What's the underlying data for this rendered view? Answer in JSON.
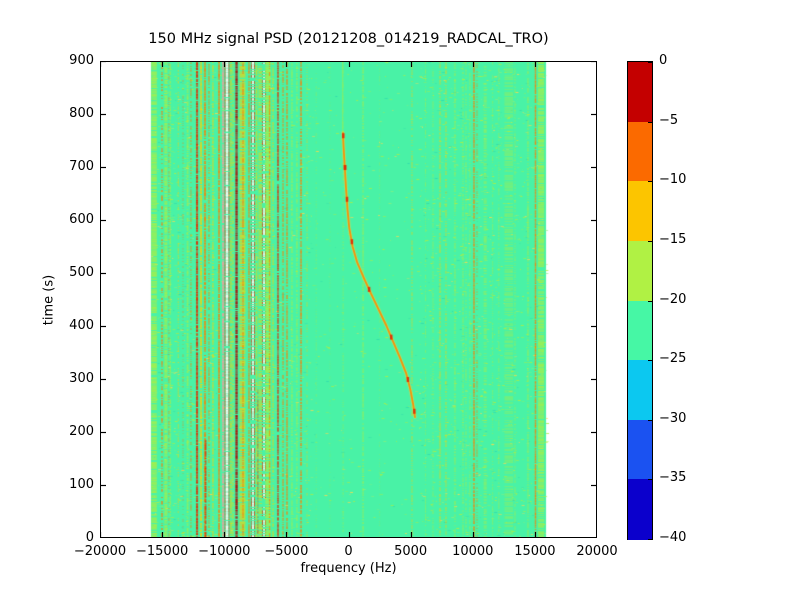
{
  "chart_data": {
    "type": "heatmap",
    "title": "150 MHz signal PSD (20121208_014219_RADCAL_TRO)",
    "xlabel": "frequency (Hz)",
    "ylabel": "time (s)",
    "xlim": [
      -20000,
      20000
    ],
    "ylim": [
      0,
      900
    ],
    "grid": false,
    "x_ticks": [
      -20000,
      -15000,
      -10000,
      -5000,
      0,
      5000,
      10000,
      15000,
      20000
    ],
    "x_tick_labels": [
      "−20000",
      "−15000",
      "−10000",
      "−5000",
      "0",
      "5000",
      "10000",
      "15000",
      "20000"
    ],
    "y_ticks": [
      0,
      100,
      200,
      300,
      400,
      500,
      600,
      700,
      800,
      900
    ],
    "y_tick_labels": [
      "0",
      "100",
      "200",
      "300",
      "400",
      "500",
      "600",
      "700",
      "800",
      "900"
    ],
    "colorbar": {
      "position": "right",
      "tick_values": [
        0,
        -5,
        -10,
        -15,
        -20,
        -25,
        -30,
        -35,
        -40
      ],
      "tick_labels": [
        "0",
        "−5",
        "−10",
        "−15",
        "−20",
        "−25",
        "−30",
        "−35",
        "−40"
      ],
      "segments_top_to_bottom": [
        "#c40000",
        "#fb6a00",
        "#fcc500",
        "#b0f144",
        "#46f7a5",
        "#0cc8f0",
        "#1b52f1",
        "#0b00cc"
      ]
    },
    "data_extent_hz": [
      -15900,
      15900
    ],
    "background_level_color": "#49f2a6",
    "palette": {
      "R": "#e22800",
      "DR": "#b20000",
      "O": "#ff7d00",
      "Y": "#ffd000",
      "G": "#b2ee3e",
      "LG": "#8bf07c",
      "P": "#f29e9e",
      "W": "#ffffff",
      "T": "#2fd9b0",
      "YD": "#ffd84d"
    },
    "noise_zones": [
      {
        "f0": -15900,
        "f1": -10700,
        "density": 0.75
      },
      {
        "f0": -10700,
        "f1": -3000,
        "density": 0.4
      },
      {
        "f0": -3000,
        "f1": 5600,
        "density": 0.16
      },
      {
        "f0": 5600,
        "f1": 15900,
        "density": 0.55
      }
    ],
    "stripes": [
      [
        -15650,
        450,
        "G",
        0.8,
        0.12
      ],
      [
        -15010,
        140,
        "O",
        0.8,
        0.5
      ],
      [
        -14700,
        250,
        "G",
        0.75,
        0.15
      ],
      [
        -14450,
        110,
        "O",
        0.55,
        0.55
      ],
      [
        -14350,
        120,
        "G",
        0.7,
        0.3
      ],
      [
        -13700,
        100,
        "Y",
        0.55,
        0.5
      ],
      [
        -13320,
        90,
        "O",
        0.5,
        0.6
      ],
      [
        -12950,
        150,
        "G",
        0.7,
        0.3
      ],
      [
        -12680,
        100,
        "O",
        0.7,
        0.45
      ],
      [
        -12190,
        170,
        "R",
        0.95,
        0.05
      ],
      [
        -11870,
        160,
        "Y",
        0.85,
        0.1
      ],
      [
        -11550,
        170,
        "O",
        0.88,
        0.12
      ],
      [
        -11500,
        140,
        "R",
        0.9,
        0.15,
        0,
        185
      ],
      [
        -11230,
        120,
        "O",
        0.7,
        0.35
      ],
      [
        -10910,
        110,
        "Y",
        0.8,
        0.2
      ],
      [
        -10420,
        140,
        "O",
        0.92,
        0.06
      ],
      [
        -10100,
        160,
        "P",
        0.9,
        0.08
      ],
      [
        -9780,
        230,
        "W",
        0.95,
        0.05,
        0,
        900,
        1
      ],
      [
        -9460,
        110,
        "Y",
        0.8,
        0.2
      ],
      [
        -9300,
        100,
        "Y",
        0.7,
        0.3
      ],
      [
        -9010,
        190,
        "DR",
        0.96,
        0.03
      ],
      [
        -8530,
        470,
        "Y",
        0.7,
        0.15
      ],
      [
        -8490,
        110,
        "O",
        0.85,
        0.2
      ],
      [
        -8010,
        120,
        "O",
        0.85,
        0.15
      ],
      [
        -7690,
        170,
        "W",
        0.9,
        0.35,
        0,
        900,
        1
      ],
      [
        -7400,
        120,
        "Y",
        0.75,
        0.25
      ],
      [
        -7290,
        90,
        "R",
        0.85,
        0.3,
        0,
        280
      ],
      [
        -7100,
        300,
        "Y",
        0.55,
        0.3
      ],
      [
        -6800,
        160,
        "W",
        0.85,
        0.45,
        0,
        900,
        1
      ],
      [
        -6480,
        420,
        "G",
        0.85,
        0.1
      ],
      [
        -6350,
        110,
        "O",
        0.8,
        0.3
      ],
      [
        -6075,
        110,
        "Y",
        0.75,
        0.3
      ],
      [
        -5675,
        130,
        "R",
        0.9,
        0.1
      ],
      [
        -5270,
        110,
        "O",
        0.8,
        0.3
      ],
      [
        -4950,
        120,
        "O",
        0.85,
        0.2
      ],
      [
        -4550,
        100,
        "G",
        0.8,
        0.25
      ],
      [
        -4150,
        100,
        "G",
        0.75,
        0.3
      ],
      [
        -3820,
        140,
        "O",
        0.85,
        0.25
      ],
      [
        -3340,
        90,
        "Y",
        0.5,
        0.5
      ],
      [
        -2600,
        80,
        "G",
        0.4,
        0.6
      ],
      [
        -1500,
        70,
        "G",
        0.3,
        0.7
      ],
      [
        -440,
        70,
        "G",
        0.55,
        0.4
      ],
      [
        1170,
        90,
        "G",
        0.8,
        0.25
      ],
      [
        2500,
        70,
        "G",
        0.35,
        0.65
      ],
      [
        5110,
        90,
        "Y",
        0.6,
        0.4
      ],
      [
        6200,
        90,
        "G",
        0.5,
        0.5
      ],
      [
        6800,
        90,
        "G",
        0.55,
        0.45
      ],
      [
        7365,
        100,
        "Y",
        0.7,
        0.3
      ],
      [
        7845,
        100,
        "Y",
        0.65,
        0.35
      ],
      [
        8570,
        100,
        "G",
        0.7,
        0.3
      ],
      [
        9215,
        90,
        "G",
        0.65,
        0.35
      ],
      [
        9455,
        90,
        "G",
        0.6,
        0.4
      ],
      [
        9775,
        90,
        "G",
        0.65,
        0.35
      ],
      [
        10100,
        130,
        "O",
        0.85,
        0.15
      ],
      [
        10340,
        90,
        "O",
        0.6,
        0.5
      ],
      [
        11000,
        250,
        "G",
        0.5,
        0.4
      ],
      [
        11600,
        90,
        "G",
        0.5,
        0.5
      ],
      [
        12100,
        90,
        "G",
        0.55,
        0.45
      ],
      [
        12900,
        700,
        "G",
        0.4,
        0.4
      ],
      [
        13400,
        90,
        "G",
        0.6,
        0.4
      ],
      [
        14445,
        100,
        "G",
        0.7,
        0.3
      ],
      [
        15050,
        120,
        "O",
        0.9,
        0.1
      ],
      [
        15500,
        500,
        "G",
        0.75,
        0.15
      ]
    ],
    "chirp": {
      "points_time_freq": [
        [
          228,
          5350
        ],
        [
          250,
          5220
        ],
        [
          280,
          4980
        ],
        [
          310,
          4650
        ],
        [
          340,
          4150
        ],
        [
          370,
          3600
        ],
        [
          400,
          3060
        ],
        [
          430,
          2450
        ],
        [
          460,
          1830
        ],
        [
          490,
          1250
        ],
        [
          520,
          700
        ],
        [
          550,
          330
        ],
        [
          585,
          60
        ],
        [
          620,
          -80
        ],
        [
          660,
          -200
        ],
        [
          700,
          -300
        ],
        [
          735,
          -390
        ],
        [
          765,
          -450
        ]
      ],
      "pre_tone_freq": -470,
      "pre_tone_time_range": [
        765,
        900
      ],
      "core_color": "#ff8c00",
      "halo_color": "#ffe14d",
      "fleck_color": "#e22800",
      "fleck_times": [
        240,
        300,
        380,
        470,
        560,
        640,
        700,
        760
      ]
    }
  }
}
